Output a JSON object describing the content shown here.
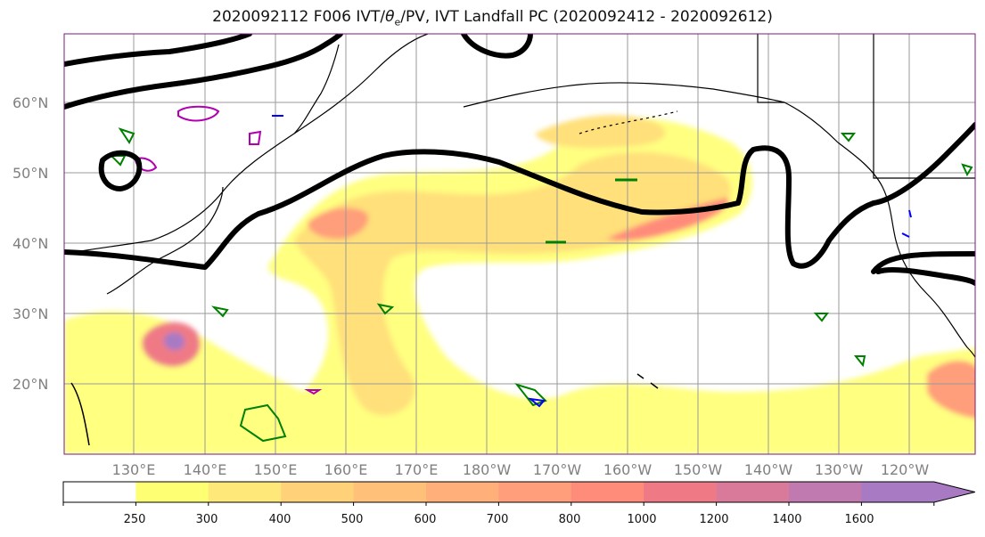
{
  "title": "2020092112 F006 IVT/θe/PV, IVT Landfall PC (2020092412 - 2020092612)",
  "title_parts": {
    "prefix": "2020092112 F006 IVT/",
    "theta": "θ",
    "sub": "e",
    "suffix": "/PV, IVT Landfall PC (2020092412 - 2020092612)"
  },
  "map": {
    "lat_labels": [
      "60°N",
      "50°N",
      "40°N",
      "30°N",
      "20°N"
    ],
    "lon_labels": [
      "130°E",
      "140°E",
      "150°E",
      "160°E",
      "170°E",
      "180°W",
      "170°W",
      "160°W",
      "150°W",
      "140°W",
      "130°W",
      "120°W"
    ],
    "grid": true,
    "label_color": "#808080"
  },
  "colorbar": {
    "labels": [
      "250",
      "300",
      "400",
      "500",
      "600",
      "700",
      "800",
      "1000",
      "1200",
      "1400",
      "1600"
    ],
    "colors": [
      "#ffffff",
      "#ffff73",
      "#ffe87a",
      "#ffd27a",
      "#ffc17a",
      "#ffb07a",
      "#ff9e7a",
      "#ff8c7a",
      "#ef7a86",
      "#d97a9a",
      "#c07ab0",
      "#a87ac4"
    ],
    "extend": "max"
  },
  "legend_colors": {
    "ivt_fill": "#ffd27a",
    "pv_contour": "#008000",
    "theta_e_contour": "#b000b0",
    "blue_contour": "#0000ff",
    "landfall_pc": "#000000",
    "coast": "#000000"
  }
}
